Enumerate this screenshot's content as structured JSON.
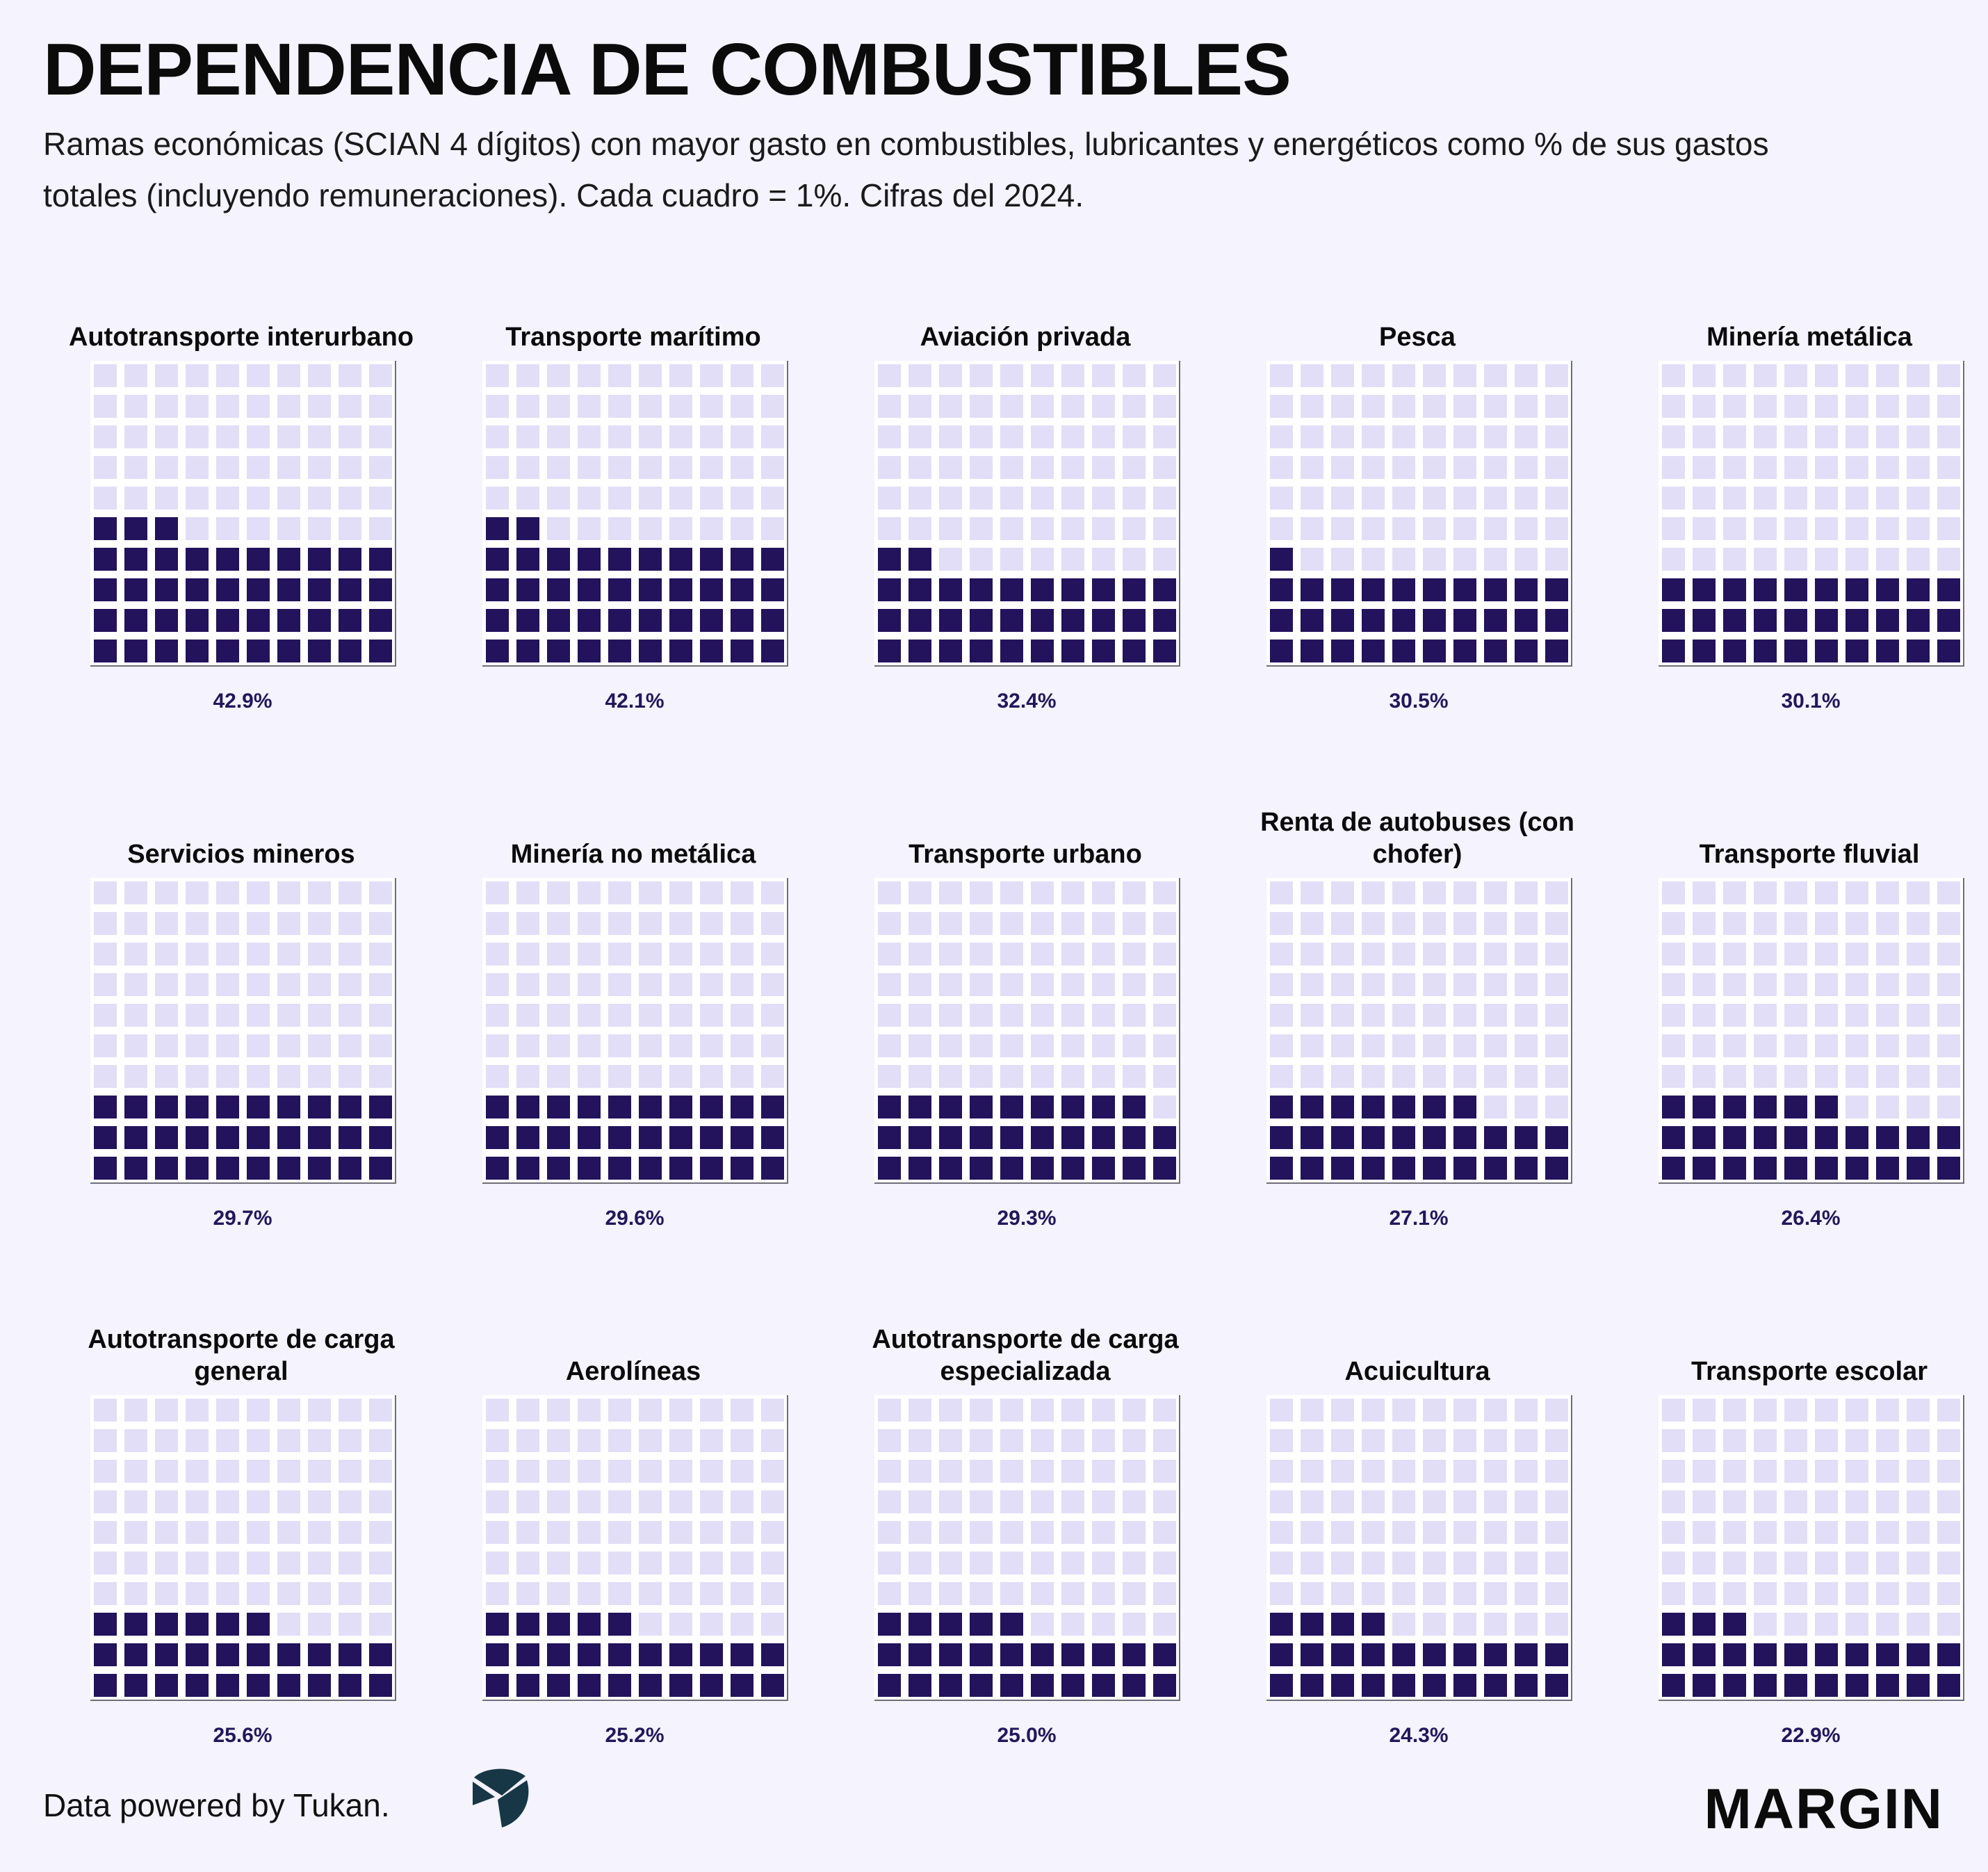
{
  "header": {
    "title": "DEPENDENCIA DE COMBUSTIBLES",
    "subtitle": "Ramas económicas (SCIAN 4 dígitos) con mayor gasto en combustibles, lubricantes y energéticos como % de sus gastos totales (incluyendo remuneraciones). Cada cuadro = 1%. Cifras del 2024."
  },
  "colors": {
    "filled": "#23125c",
    "empty": "#e2def7",
    "background": "#f4f3fe",
    "label": "#23175c"
  },
  "chart_data": {
    "type": "waffle",
    "unit": "Cada cuadro = 1%",
    "grid": [
      10,
      10
    ],
    "panels": [
      {
        "name": "Autotransporte interurbano",
        "value": 42.9,
        "label": "42.9%"
      },
      {
        "name": "Transporte marítimo",
        "value": 42.1,
        "label": "42.1%"
      },
      {
        "name": "Aviación privada",
        "value": 32.4,
        "label": "32.4%"
      },
      {
        "name": "Pesca",
        "value": 30.5,
        "label": "30.5%"
      },
      {
        "name": "Minería metálica",
        "value": 30.1,
        "label": "30.1%"
      },
      {
        "name": "Servicios mineros",
        "value": 29.7,
        "label": "29.7%"
      },
      {
        "name": "Minería no metálica",
        "value": 29.6,
        "label": "29.6%"
      },
      {
        "name": "Transporte urbano",
        "value": 29.3,
        "label": "29.3%"
      },
      {
        "name": "Renta de autobuses (con chofer)",
        "value": 27.1,
        "label": "27.1%"
      },
      {
        "name": "Transporte fluvial",
        "value": 26.4,
        "label": "26.4%"
      },
      {
        "name": "Autotransporte de carga general",
        "value": 25.6,
        "label": "25.6%"
      },
      {
        "name": "Aerolíneas",
        "value": 25.2,
        "label": "25.2%"
      },
      {
        "name": "Autotransporte de carga especializada",
        "value": 25.0,
        "label": "25.0%"
      },
      {
        "name": "Acuicultura",
        "value": 24.3,
        "label": "24.3%"
      },
      {
        "name": "Transporte escolar",
        "value": 22.9,
        "label": "22.9%"
      }
    ]
  },
  "footer": {
    "credit": "Data powered by Tukan.",
    "brand": "MARGIN",
    "tukan_logo_icon": "tukan-logo-icon"
  }
}
